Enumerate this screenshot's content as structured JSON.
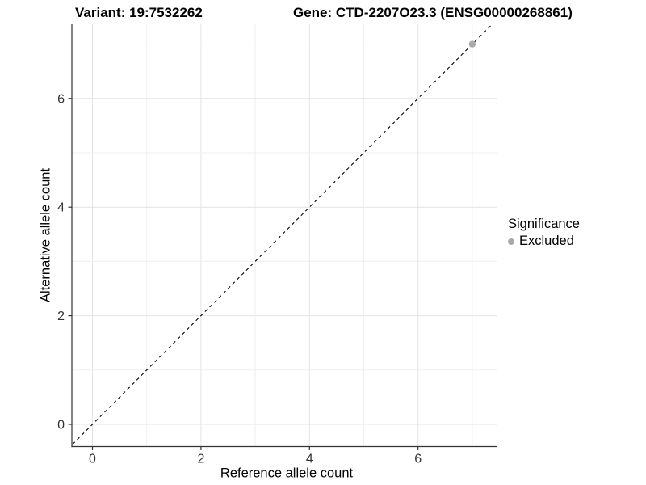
{
  "title": {
    "variant": "Variant: 19:7532262",
    "gene": "Gene: CTD-2207O23.3 (ENSG00000268861)"
  },
  "chart_data": {
    "type": "scatter",
    "title": "Variant: 19:7532262   Gene: CTD-2207O23.3 (ENSG00000268861)",
    "xlabel": "Reference allele count",
    "ylabel": "Alternative allele count",
    "xlim": [
      -0.4,
      7.45
    ],
    "ylim": [
      -0.4,
      7.4
    ],
    "x_ticks": [
      0,
      2,
      4,
      6
    ],
    "y_ticks": [
      0,
      2,
      4,
      6
    ],
    "grid_values": [
      0,
      1,
      2,
      3,
      4,
      5,
      6,
      7
    ],
    "grid": true,
    "identity_line": {
      "style": "dashed",
      "from": [
        -0.45,
        -0.45
      ],
      "to": [
        7.5,
        7.5
      ]
    },
    "series": [
      {
        "name": "Excluded",
        "color": "#aaaaaa",
        "points": [
          [
            7,
            7
          ]
        ]
      }
    ],
    "legend": {
      "title": "Significance",
      "position": "right",
      "items": [
        {
          "label": "Excluded",
          "color": "#aaaaaa"
        }
      ]
    }
  },
  "colors": {
    "background": "#ffffff",
    "grid_major": "#e4e4e4",
    "grid_minor": "#efefef",
    "axis_line": "#333333",
    "tick_text": "#333333",
    "dashed_line": "#000000",
    "excluded_point": "#aaaaaa"
  }
}
